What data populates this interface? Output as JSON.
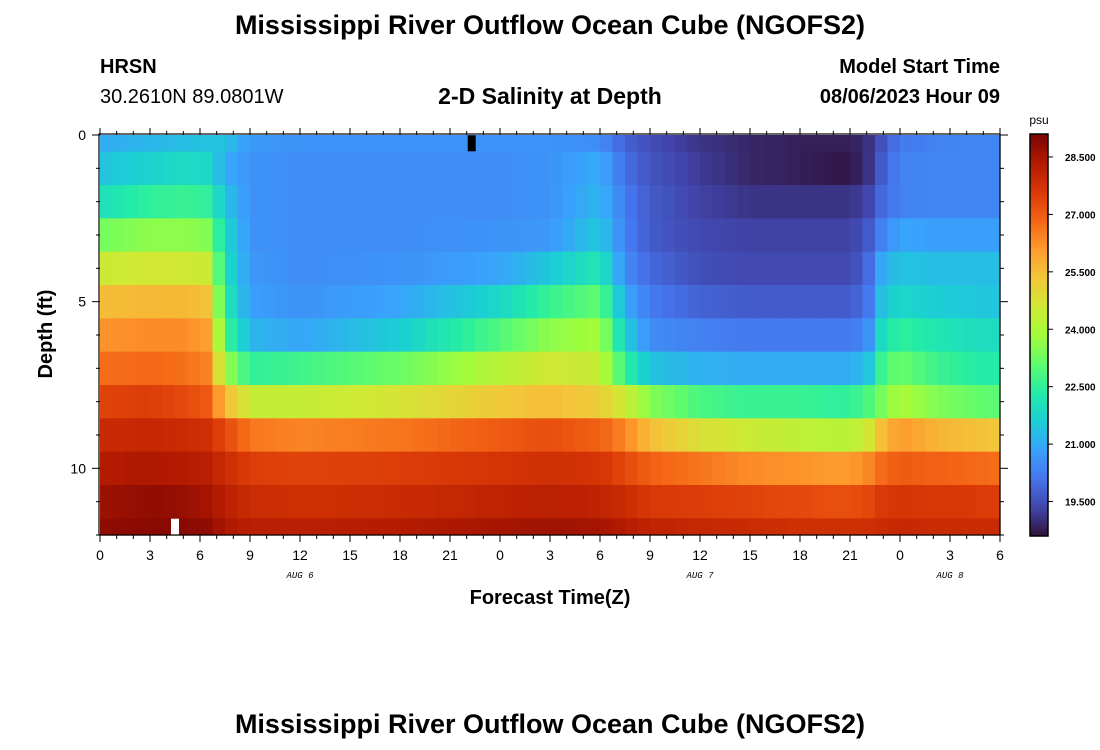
{
  "header": {
    "title": "Mississippi River Outflow Ocean Cube (NGOFS2)",
    "station": "HRSN",
    "coords": "30.2610N  89.0801W",
    "subtitle": "2-D Salinity at Depth",
    "start_label": "Model Start Time",
    "start_time": "08/06/2023 Hour 09",
    "footer_title": "Mississippi River Outflow Ocean Cube (NGOFS2)"
  },
  "chart_data": {
    "type": "heatmap",
    "title": "2-D Salinity at Depth",
    "xlabel": "Forecast Time(Z)",
    "ylabel": "Depth (ft)",
    "colorbar_unit": "psu",
    "x_tick_labels": [
      "0",
      "3",
      "6",
      "9",
      "12",
      "15",
      "18",
      "21",
      "0",
      "3",
      "6",
      "9",
      "12",
      "15",
      "18",
      "21",
      "0",
      "3",
      "6"
    ],
    "x_tick_hours": [
      0,
      3,
      6,
      9,
      12,
      15,
      18,
      21,
      24,
      27,
      30,
      33,
      36,
      39,
      42,
      45,
      48,
      51,
      54
    ],
    "date_labels": [
      {
        "label": "AUG 6",
        "hour": 12
      },
      {
        "label": "AUG 7",
        "hour": 36
      },
      {
        "label": "AUG 8",
        "hour": 51
      }
    ],
    "xlim": [
      0,
      54
    ],
    "y_tick_labels": [
      "0",
      "5",
      "10"
    ],
    "y_tick_values": [
      0,
      5,
      10
    ],
    "ylim": [
      0,
      12
    ],
    "y_reversed": true,
    "color_ticks": [
      "28.500",
      "27.000",
      "25.500",
      "24.000",
      "22.500",
      "21.000",
      "19.500"
    ],
    "color_tick_values": [
      28.5,
      27.0,
      25.5,
      24.0,
      22.5,
      21.0,
      19.5
    ],
    "color_range": [
      18.6,
      29.1
    ],
    "depth_levels_ft": [
      0,
      1,
      2,
      3,
      4,
      5,
      6,
      7,
      8,
      9,
      10,
      11,
      12
    ],
    "profile_times_hr": [
      0,
      3,
      5,
      6.5,
      7.5,
      9,
      12,
      18,
      24,
      27,
      30,
      31.5,
      33,
      36,
      39,
      42,
      44,
      45,
      46,
      47,
      48,
      50,
      52,
      54
    ],
    "salinity": [
      [
        21.0,
        21.2,
        21.3,
        21.4,
        21.4,
        20.7,
        20.6,
        20.6,
        20.6,
        20.6,
        20.5,
        19.8,
        19.5,
        19.1,
        18.9,
        18.8,
        18.8,
        18.8,
        19.0,
        19.6,
        20.2,
        20.3,
        20.4,
        20.4
      ],
      [
        21.4,
        21.7,
        21.9,
        21.8,
        21.0,
        20.6,
        20.5,
        20.5,
        20.5,
        20.6,
        21.0,
        20.0,
        19.6,
        19.2,
        18.9,
        18.8,
        18.7,
        18.7,
        19.0,
        19.8,
        20.3,
        20.4,
        20.4,
        20.4
      ],
      [
        22.0,
        22.5,
        22.6,
        22.5,
        21.4,
        20.6,
        20.5,
        20.5,
        20.5,
        20.6,
        21.2,
        20.2,
        19.7,
        19.3,
        19.1,
        19.1,
        19.1,
        19.1,
        19.3,
        20.0,
        20.3,
        20.4,
        20.4,
        20.4
      ],
      [
        23.3,
        23.6,
        23.6,
        23.5,
        21.8,
        20.6,
        20.5,
        20.5,
        20.6,
        20.7,
        21.5,
        20.3,
        19.7,
        19.4,
        19.3,
        19.3,
        19.3,
        19.3,
        19.6,
        20.4,
        20.9,
        20.8,
        20.8,
        20.8
      ],
      [
        24.5,
        24.6,
        24.6,
        24.5,
        22.0,
        20.7,
        20.5,
        20.6,
        20.9,
        21.5,
        22.2,
        20.5,
        19.9,
        19.5,
        19.4,
        19.4,
        19.4,
        19.4,
        19.8,
        21.1,
        21.4,
        21.3,
        21.3,
        21.3
      ],
      [
        25.5,
        25.6,
        25.6,
        25.4,
        22.3,
        20.8,
        20.6,
        20.9,
        21.8,
        22.6,
        23.1,
        21.0,
        20.2,
        19.8,
        19.7,
        19.7,
        19.7,
        19.7,
        20.0,
        21.5,
        21.8,
        21.6,
        21.5,
        21.4
      ],
      [
        26.2,
        26.3,
        26.3,
        26.0,
        22.8,
        21.2,
        20.9,
        21.6,
        22.9,
        23.6,
        23.9,
        21.6,
        20.5,
        20.3,
        20.2,
        20.2,
        20.2,
        20.2,
        20.4,
        22.1,
        22.5,
        22.2,
        22.0,
        21.9
      ],
      [
        26.7,
        26.8,
        26.7,
        26.4,
        23.8,
        22.5,
        22.7,
        23.2,
        24.2,
        24.6,
        24.4,
        22.5,
        21.4,
        21.1,
        21.0,
        21.0,
        21.0,
        21.0,
        21.3,
        22.8,
        23.2,
        22.7,
        22.4,
        22.3
      ],
      [
        27.4,
        27.5,
        27.3,
        27.0,
        25.6,
        24.4,
        24.4,
        24.7,
        25.3,
        25.5,
        25.2,
        24.5,
        23.5,
        22.8,
        22.6,
        22.6,
        22.5,
        22.5,
        22.8,
        23.4,
        24.0,
        23.5,
        23.2,
        23.0
      ],
      [
        27.9,
        28.0,
        27.9,
        27.8,
        27.3,
        26.6,
        26.4,
        26.6,
        27.0,
        27.2,
        26.9,
        26.4,
        25.5,
        24.8,
        24.5,
        24.3,
        24.2,
        24.2,
        24.5,
        25.6,
        26.1,
        25.7,
        25.5,
        25.3
      ],
      [
        28.3,
        28.4,
        28.3,
        28.2,
        27.9,
        27.5,
        27.4,
        27.5,
        27.7,
        27.8,
        27.7,
        27.3,
        26.9,
        26.6,
        26.3,
        26.2,
        26.1,
        26.1,
        26.3,
        26.8,
        27.0,
        26.9,
        26.8,
        26.7
      ],
      [
        28.6,
        28.8,
        28.7,
        28.5,
        28.2,
        27.9,
        27.8,
        27.9,
        28.1,
        28.2,
        28.1,
        27.9,
        27.6,
        27.5,
        27.4,
        27.3,
        27.2,
        27.2,
        27.3,
        27.6,
        27.7,
        27.6,
        27.6,
        27.5
      ],
      [
        28.8,
        28.9,
        28.9,
        28.8,
        28.4,
        28.2,
        28.2,
        28.3,
        28.5,
        28.6,
        28.5,
        28.3,
        28.1,
        28.0,
        27.9,
        27.8,
        27.8,
        27.8,
        27.8,
        27.9,
        28.0,
        27.9,
        27.9,
        27.9
      ]
    ],
    "colormap": [
      "#30123b",
      "#4145ab",
      "#4675ed",
      "#39a2fc",
      "#1bcfd4",
      "#24eca6",
      "#61fc6c",
      "#a4fc3b",
      "#d1e834",
      "#f3c63a",
      "#fe9b2d",
      "#f36315",
      "#d93806",
      "#b11901",
      "#7a0403"
    ],
    "markers": [
      {
        "hour": 4.5,
        "depth_ft": 11.75,
        "color": "#ffffff"
      },
      {
        "hour": 22.3,
        "depth_ft": 0.25,
        "color": "#000000"
      }
    ]
  }
}
